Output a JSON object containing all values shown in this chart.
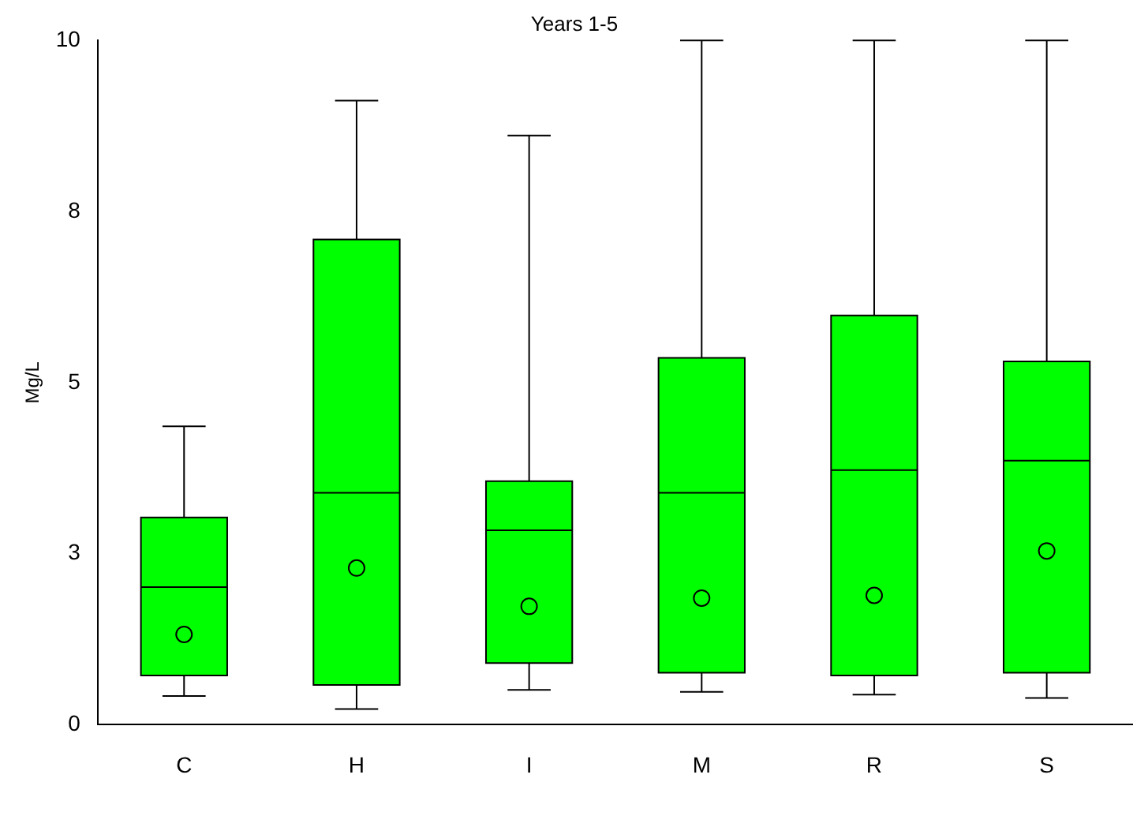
{
  "chart_data": {
    "type": "box",
    "title": "Years 1-5",
    "ylabel": "Mg/L",
    "categories": [
      "C",
      "H",
      "I",
      "M",
      "R",
      "S"
    ],
    "color": "#00ff00",
    "boxes": [
      {
        "low": 0.42,
        "q1": 0.72,
        "median": 2.01,
        "q3": 3.03,
        "high": 4.36,
        "mean": 1.32
      },
      {
        "low": 0.23,
        "q1": 0.58,
        "median": 3.39,
        "q3": 7.09,
        "high": 9.12,
        "mean": 2.29
      },
      {
        "low": 0.51,
        "q1": 0.9,
        "median": 2.84,
        "q3": 3.56,
        "high": 8.61,
        "mean": 1.73
      },
      {
        "low": 0.48,
        "q1": 0.76,
        "median": 3.39,
        "q3": 5.36,
        "high": 10,
        "mean": 1.85
      },
      {
        "low": 0.44,
        "q1": 0.72,
        "median": 3.72,
        "q3": 5.98,
        "high": 10,
        "mean": 1.89
      },
      {
        "low": 0.39,
        "q1": 0.76,
        "median": 3.86,
        "q3": 5.31,
        "high": 10,
        "mean": 2.54
      }
    ],
    "ylim": [
      0,
      10
    ],
    "yticks": [
      0,
      {
        "value": 2.5,
        "label": "3"
      },
      5,
      {
        "value": 7.5,
        "label": "8"
      },
      10
    ],
    "grid": false,
    "legend": false
  }
}
